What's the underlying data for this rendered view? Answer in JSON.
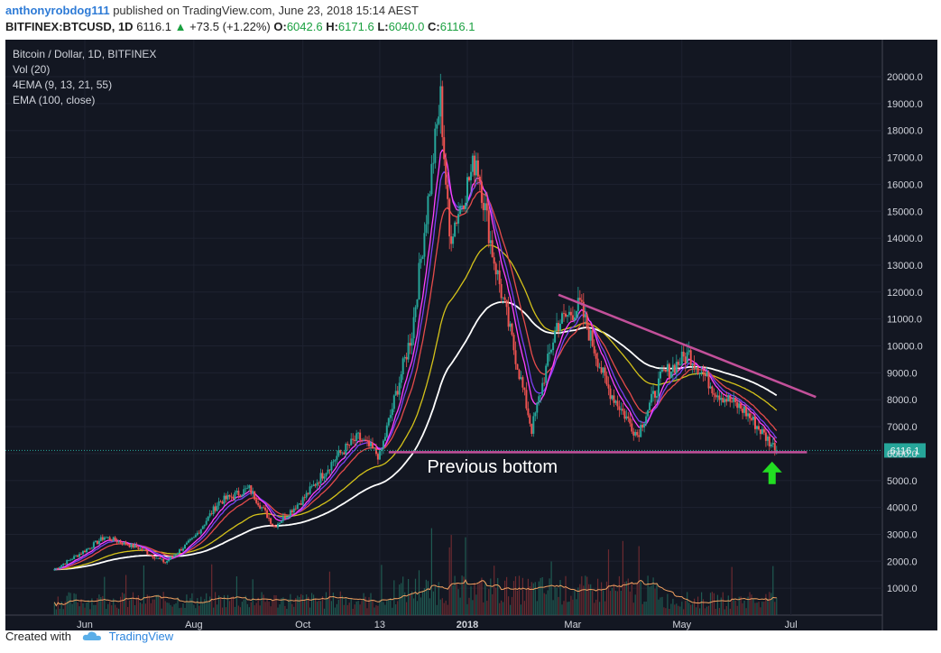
{
  "header": {
    "author": "anthonyrobdog111",
    "published_text": "published on TradingView.com, June 23, 2018 15:14 AEST",
    "symbol": "BITFINEX:BTCUSD, 1D",
    "last": "6116.1",
    "change_arrow": "▲",
    "change": "+73.5 (+1.22%)",
    "o_label": "O:",
    "o_value": "6042.6",
    "h_label": "H:",
    "h_value": "6171.6",
    "l_label": "L:",
    "l_value": "6040.0",
    "c_label": "C:",
    "c_value": "6116.1"
  },
  "legend": {
    "title": "Bitcoin / Dollar, 1D, BITFINEX",
    "vol": "Vol (20)",
    "ema4": "4EMA (9, 13, 21, 55)",
    "ema100": "EMA (100, close)"
  },
  "footer": {
    "created_with": "Created with",
    "brand": "TradingView",
    "brand_icon": "tradingview-cloud-icon"
  },
  "chart_data": {
    "type": "line",
    "title": "Bitcoin / Dollar, 1D, BITFINEX",
    "xlabel": "",
    "ylabel": "",
    "ylim": [
      0,
      20500
    ],
    "x_tick_labels": [
      "Jun",
      "Aug",
      "Oct",
      "13",
      "2018",
      "Mar",
      "May",
      "Jul"
    ],
    "y_tick_labels": [
      "1000.0",
      "2000.0",
      "3000.0",
      "4000.0",
      "5000.0",
      "6000.0",
      "7000.0",
      "8000.0",
      "9000.0",
      "10000.0",
      "11000.0",
      "12000.0",
      "13000.0",
      "14000.0",
      "15000.0",
      "16000.0",
      "17000.0",
      "18000.0",
      "19000.0",
      "20000.0"
    ],
    "last_price_label": "6116.1",
    "last_price": 6116.1,
    "annotation": "Previous bottom",
    "grid": true,
    "colors": {
      "background": "#131722",
      "up": "#26a69a",
      "down": "#ef5350",
      "ema9": "#ff40ff",
      "ema13": "#7b3ff2",
      "ema21": "#e54b4b",
      "ema55": "#d4c21a",
      "ema100": "#ffffff",
      "vol_ma": "#f0a060",
      "trendline": "#c2509a",
      "support": "#c2509a",
      "arrow": "#22dd22"
    },
    "series": [
      {
        "name": "Price",
        "x": [
          "2017-05-15",
          "2017-06-01",
          "2017-06-12",
          "2017-07-01",
          "2017-07-16",
          "2017-08-01",
          "2017-08-15",
          "2017-09-01",
          "2017-09-15",
          "2017-10-01",
          "2017-10-20",
          "2017-11-01",
          "2017-11-13",
          "2017-12-01",
          "2017-12-17",
          "2017-12-22",
          "2018-01-06",
          "2018-01-15",
          "2018-02-06",
          "2018-02-20",
          "2018-03-05",
          "2018-03-20",
          "2018-04-06",
          "2018-04-20",
          "2018-05-05",
          "2018-05-20",
          "2018-06-05",
          "2018-06-23"
        ],
        "values": [
          1700,
          2400,
          2900,
          2500,
          1950,
          2850,
          4200,
          4700,
          3300,
          4300,
          5900,
          6600,
          5900,
          10500,
          19200,
          14000,
          17000,
          13500,
          6900,
          10800,
          11500,
          8500,
          6700,
          8900,
          9700,
          8300,
          7600,
          6116
        ]
      },
      {
        "name": "EMA 100",
        "x": [
          "2017-05-15",
          "2017-07-01",
          "2017-08-15",
          "2017-10-01",
          "2017-11-13",
          "2017-12-17",
          "2018-01-15",
          "2018-02-20",
          "2018-03-20",
          "2018-04-20",
          "2018-05-20",
          "2018-06-23"
        ],
        "values": [
          1300,
          1700,
          2600,
          3500,
          4800,
          8000,
          11300,
          11000,
          10100,
          9000,
          9000,
          8000
        ]
      }
    ],
    "trendline": {
      "x": [
        "2018-02-21",
        "2018-07-15"
      ],
      "y": [
        11900,
        8100
      ]
    },
    "support_line": {
      "x": [
        "2017-11-18",
        "2018-07-10"
      ],
      "y": [
        6050,
        6050
      ]
    }
  }
}
